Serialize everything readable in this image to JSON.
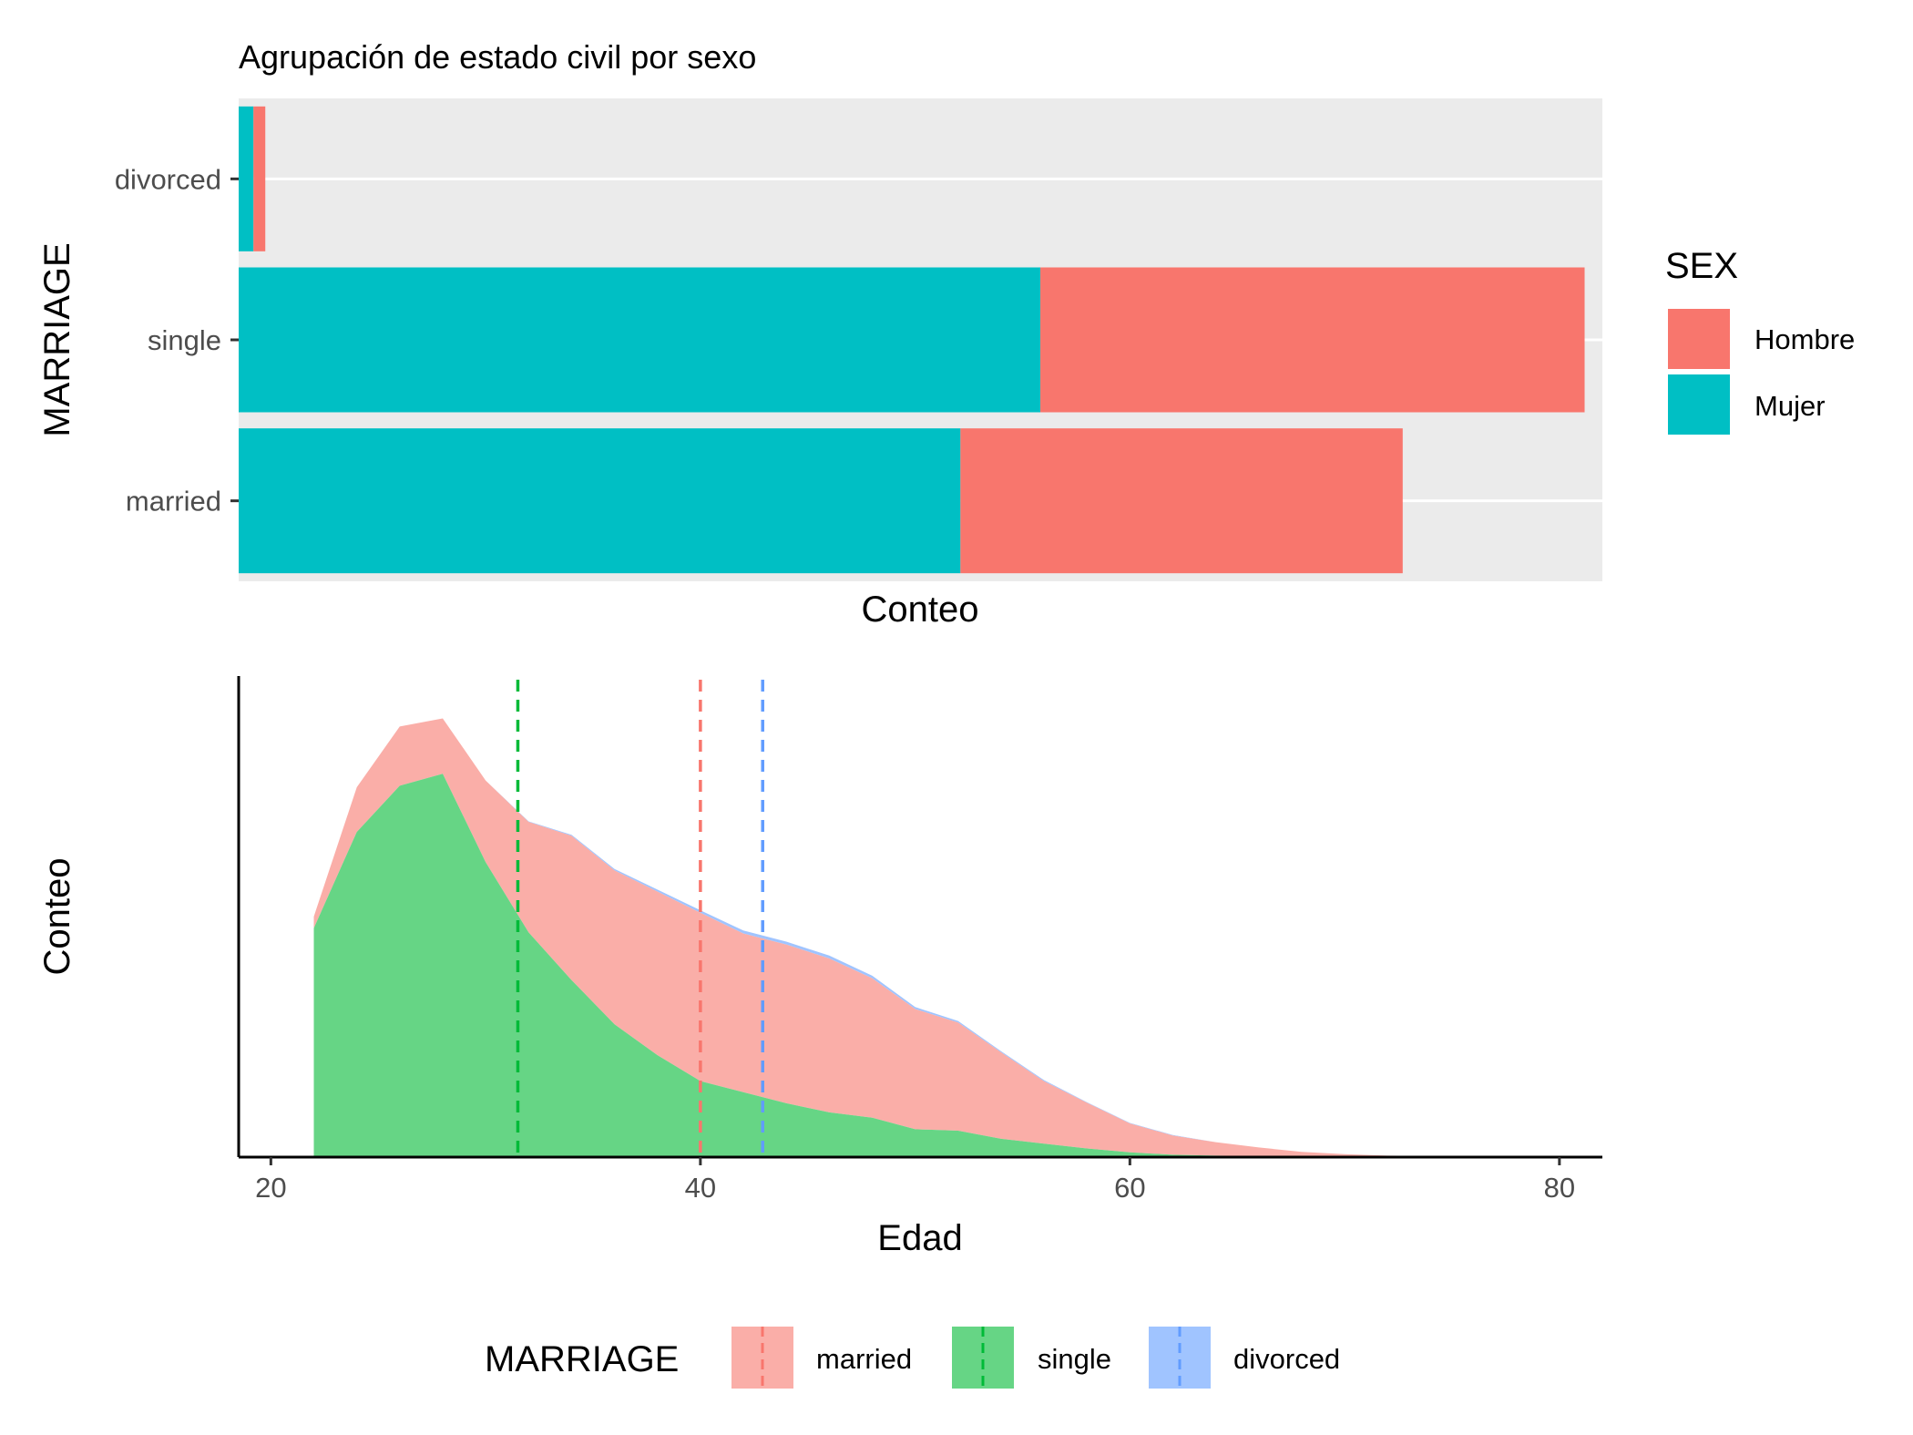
{
  "chart_data": [
    {
      "type": "bar",
      "orientation": "horizontal",
      "stacked": true,
      "title": "Agrupación de estado civil por sexo",
      "xlabel": "Conteo",
      "ylabel": "MARRIAGE",
      "categories": [
        "divorced",
        "single",
        "married"
      ],
      "series": [
        {
          "name": "Hombre",
          "values": [
            8,
            368,
            299
          ]
        },
        {
          "name": "Mujer",
          "values": [
            10,
            542,
            488
          ]
        }
      ],
      "xlim": [
        0,
        922
      ],
      "show_x_ticks": false,
      "grid": true,
      "legend": {
        "title": "SEX",
        "placement": "right",
        "entries": [
          "Hombre",
          "Mujer"
        ]
      },
      "colors": {
        "Hombre": "#F8766D",
        "Mujer": "#00BFC4"
      }
    },
    {
      "type": "area",
      "stacked": true,
      "xlabel": "Edad",
      "ylabel": "Conteo",
      "xlim": [
        18.5,
        82
      ],
      "ylim": [
        0,
        1
      ],
      "x_ticks": [
        20,
        40,
        60,
        80
      ],
      "x_tick_labels": [
        "20",
        "40",
        "60",
        "80"
      ],
      "show_y_ticks": false,
      "grid": false,
      "x": [
        22,
        24,
        26,
        28,
        30,
        32,
        34,
        36,
        38,
        40,
        42,
        44,
        46,
        48,
        50,
        52,
        54,
        56,
        58,
        60,
        62,
        64,
        66,
        68,
        70,
        72,
        74,
        76,
        78,
        80
      ],
      "series": [
        {
          "name": "married",
          "values": [
            0.024,
            0.093,
            0.123,
            0.115,
            0.17,
            0.23,
            0.3,
            0.32,
            0.34,
            0.35,
            0.33,
            0.33,
            0.32,
            0.29,
            0.25,
            0.225,
            0.18,
            0.13,
            0.095,
            0.06,
            0.04,
            0.028,
            0.018,
            0.01,
            0.005,
            0.003,
            0.002,
            0.0015,
            0.001,
            0.0005
          ]
        },
        {
          "name": "single",
          "values": [
            0.476,
            0.676,
            0.772,
            0.797,
            0.613,
            0.467,
            0.368,
            0.276,
            0.212,
            0.158,
            0.135,
            0.112,
            0.093,
            0.082,
            0.058,
            0.055,
            0.038,
            0.028,
            0.018,
            0.01,
            0.005,
            0.003,
            0.002,
            0.001,
            0.001,
            0,
            0,
            0,
            0,
            0
          ]
        },
        {
          "name": "divorced",
          "values": [
            0,
            0,
            0,
            0,
            0,
            0.001,
            0.002,
            0.003,
            0.004,
            0.005,
            0.006,
            0.006,
            0.006,
            0.005,
            0.004,
            0.003,
            0.002,
            0.002,
            0.001,
            0.001,
            0.001,
            0,
            0,
            0,
            0,
            0,
            0,
            0,
            0,
            0
          ]
        }
      ],
      "mean_lines": [
        {
          "name": "single",
          "x": 31.5
        },
        {
          "name": "married",
          "x": 40
        },
        {
          "name": "divorced",
          "x": 42.9
        }
      ],
      "legend": {
        "title": "MARRIAGE",
        "placement": "bottom",
        "entries": [
          "married",
          "single",
          "divorced"
        ]
      },
      "colors": {
        "married": "#F8766D",
        "single": "#00BA38",
        "divorced": "#619CFF",
        "married_fill": "#FAAEA8",
        "single_fill": "#66D585",
        "divorced_fill": "#A0C4FF"
      }
    }
  ]
}
